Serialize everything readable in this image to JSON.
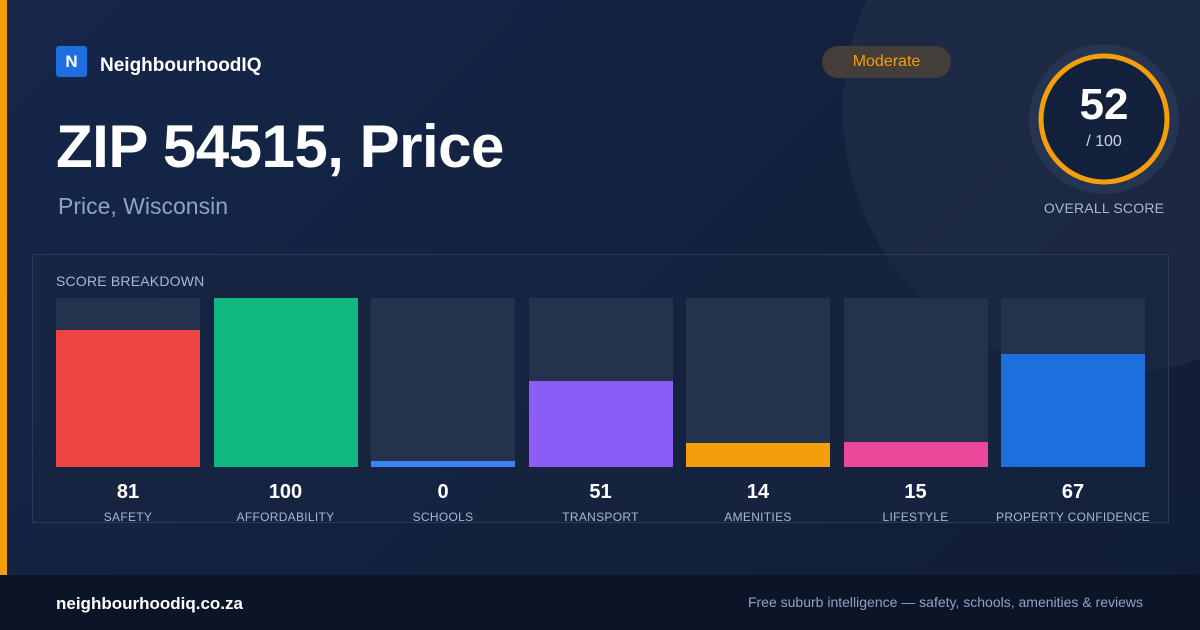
{
  "brand": {
    "mark": "N",
    "name": "NeighbourhoodIQ"
  },
  "header": {
    "title": "ZIP 54515, Price",
    "subtitle": "Price, Wisconsin",
    "badge": "Moderate"
  },
  "overall": {
    "value": "52",
    "max_label": "/ 100",
    "label": "OVERALL SCORE",
    "ring_color": "#f59e0b"
  },
  "chart_data": {
    "type": "bar",
    "title": "SCORE BREAKDOWN",
    "ylim": [
      0,
      100
    ],
    "categories": [
      "SAFETY",
      "AFFORDABILITY",
      "SCHOOLS",
      "TRANSPORT",
      "AMENITIES",
      "LIFESTYLE",
      "PROPERTY CONFIDENCE"
    ],
    "values": [
      81,
      100,
      0,
      51,
      14,
      15,
      67
    ],
    "colors": [
      "#ef4444",
      "#10b981",
      "#3b82f6",
      "#8b5cf6",
      "#f59e0b",
      "#ec4899",
      "#1d6fe0"
    ]
  },
  "footer": {
    "domain": "neighbourhoodiq.co.za",
    "tagline": "Free suburb intelligence — safety, schools, amenities & reviews"
  }
}
